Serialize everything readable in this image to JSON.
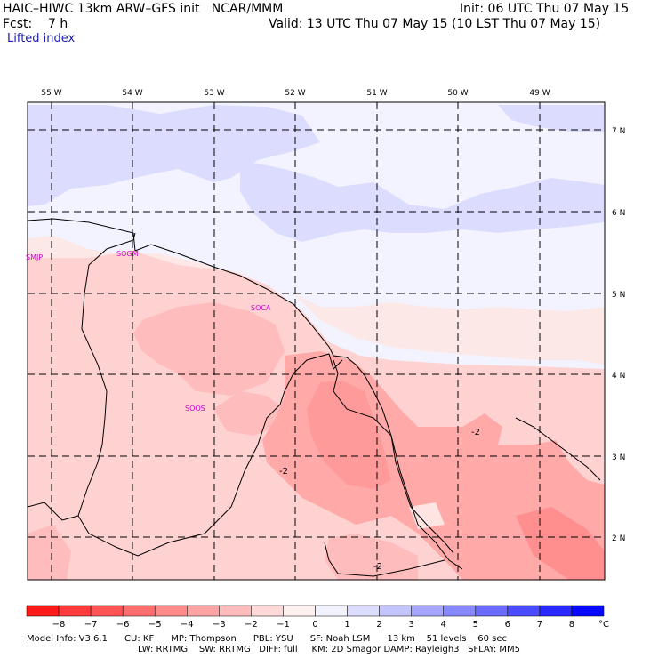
{
  "header": {
    "model_title": "HAIC–HIWC 13km ARW–GFS init   NCAR/MMM",
    "init": "Init: 06 UTC Thu 07 May 15",
    "fcst": "Fcst:    7 h",
    "valid": "Valid: 13 UTC Thu 07 May 15 (10 LST Thu 07 May 15)",
    "field": "Lifted index"
  },
  "axes": {
    "lon_labels": [
      "55 W",
      "54 W",
      "53 W",
      "52 W",
      "51 W",
      "50 W",
      "49 W"
    ],
    "lat_labels": [
      "7 N",
      "6 N",
      "5 N",
      "4 N",
      "3 N",
      "2 N"
    ]
  },
  "stations": [
    "SMJP",
    "SOGM",
    "SOCA",
    "SOOS"
  ],
  "contour_labels": [
    "-2",
    "-2",
    "-2"
  ],
  "colorbar": {
    "ticks": [
      "−8",
      "−7",
      "−6",
      "−5",
      "−4",
      "−3",
      "−2",
      "−1",
      "0",
      "1",
      "2",
      "3",
      "4",
      "5",
      "6",
      "7",
      "8"
    ],
    "unit": "°C",
    "colors": [
      "#ff1a1a",
      "#ff3a3a",
      "#ff5454",
      "#ff6e6e",
      "#ff8a8a",
      "#ffa4a4",
      "#ffbcbc",
      "#ffd8d8",
      "#fff0f0",
      "#f2f2ff",
      "#dcdcff",
      "#c4c4ff",
      "#a6a6ff",
      "#8888ff",
      "#6a6aff",
      "#4a4aff",
      "#2828ff",
      "#0808ff"
    ]
  },
  "footer": {
    "line1": "Model Info: V3.6.1      CU: KF      MP: Thompson      PBL: YSU      SF: Noah LSM      13 km    51 levels    60 sec",
    "line2": "LW: RRTMG    SW: RRTMG   DIFF: full     KM: 2D Smagor DAMP: Rayleigh3   SFLAY: MM5"
  }
}
